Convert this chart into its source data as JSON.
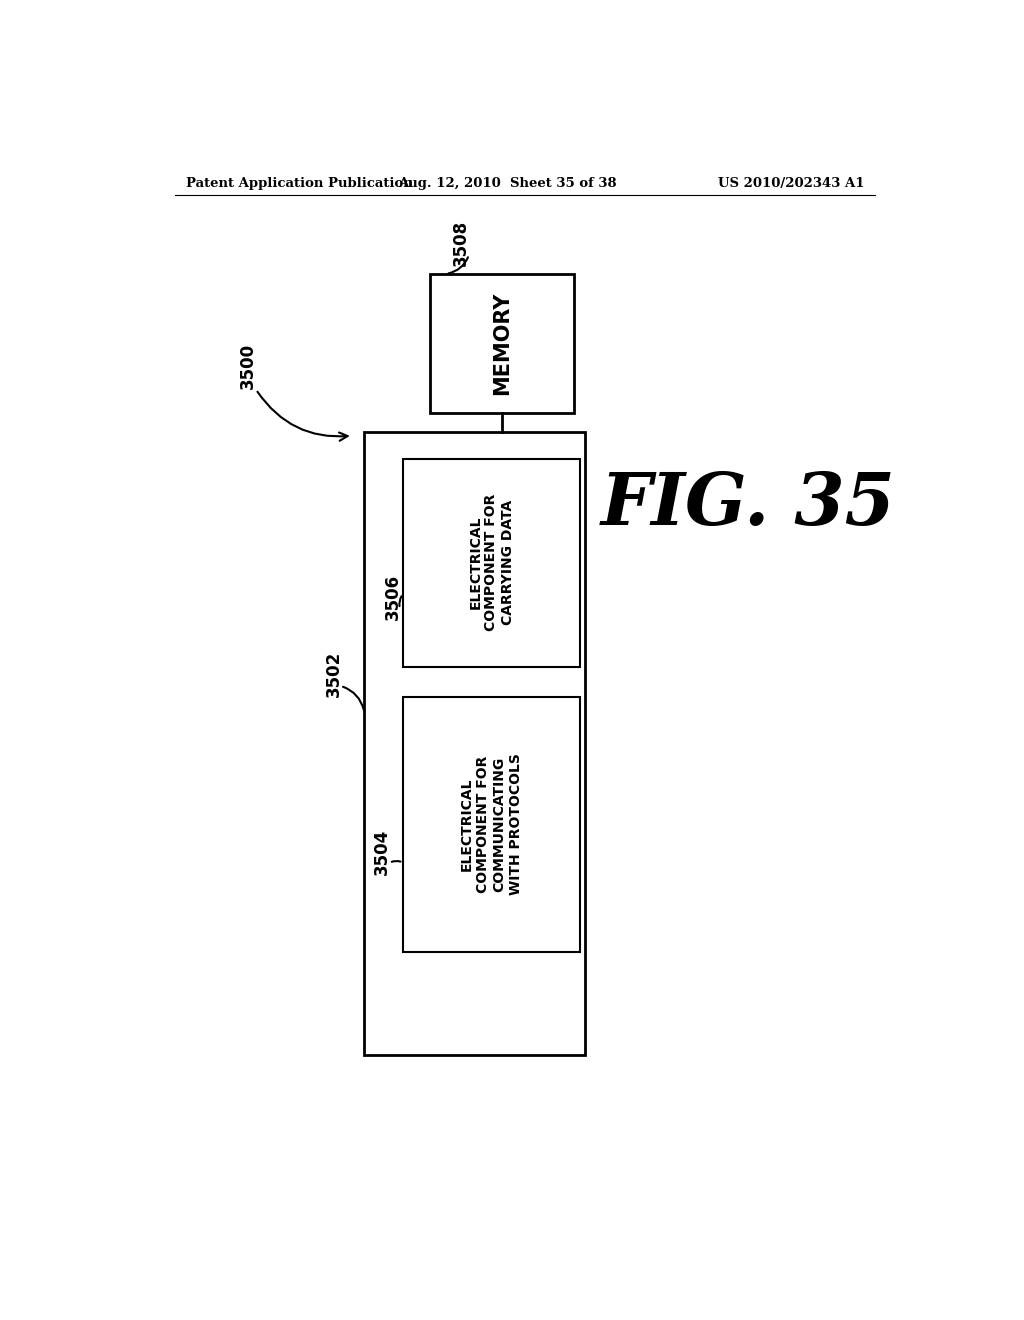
{
  "bg_color": "#ffffff",
  "header_left": "Patent Application Publication",
  "header_center": "Aug. 12, 2010  Sheet 35 of 38",
  "header_right": "US 2010/202343 A1",
  "fig_label": "FIG. 35",
  "diagram_label": "3500",
  "memory_label": "3508",
  "memory_text": "MEMORY",
  "outer_box_label": "3502",
  "inner_box1_label": "3506",
  "inner_box1_text": "ELECTRICAL\nCOMPONENT FOR\nCARRYING DATA",
  "inner_box2_label": "3504",
  "inner_box2_text": "ELECTRICAL\nCOMPONENT FOR\nCOMMUNICATING\nWITH PROTOCOLS",
  "text_color": "#000000",
  "box_edge_color": "#000000",
  "box_fill_color": "#ffffff",
  "line_color": "#000000"
}
